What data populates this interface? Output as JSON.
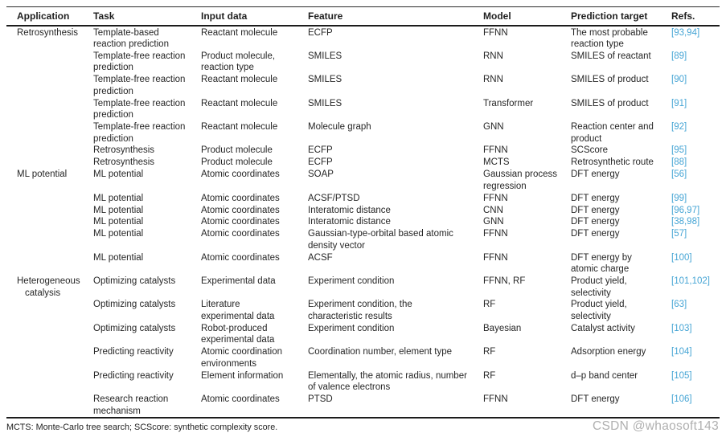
{
  "table": {
    "columns": [
      "Application",
      "Task",
      "Input data",
      "Feature",
      "Model",
      "Prediction target",
      "Refs."
    ],
    "rows": [
      {
        "application": "Retrosynthesis",
        "task": "Template-based\nreaction prediction",
        "input_data": "Reactant molecule",
        "feature": "ECFP",
        "model": "FFNN",
        "prediction_target": "The most probable\nreaction type",
        "refs": "[93,94]"
      },
      {
        "application": "",
        "task": "Template-free reaction\nprediction",
        "input_data": "Product molecule,\nreaction type",
        "feature": "SMILES",
        "model": "RNN",
        "prediction_target": "SMILES of reactant",
        "refs": "[89]"
      },
      {
        "application": "",
        "task": "Template-free reaction\nprediction",
        "input_data": "Reactant molecule",
        "feature": "SMILES",
        "model": "RNN",
        "prediction_target": "SMILES of product",
        "refs": "[90]"
      },
      {
        "application": "",
        "task": "Template-free reaction\nprediction",
        "input_data": "Reactant molecule",
        "feature": "SMILES",
        "model": "Transformer",
        "prediction_target": "SMILES of product",
        "refs": "[91]"
      },
      {
        "application": "",
        "task": "Template-free reaction\nprediction",
        "input_data": "Reactant molecule",
        "feature": "Molecule graph",
        "model": "GNN",
        "prediction_target": "Reaction center and\nproduct",
        "refs": "[92]"
      },
      {
        "application": "",
        "task": "Retrosynthesis",
        "input_data": "Product molecule",
        "feature": "ECFP",
        "model": "FFNN",
        "prediction_target": "SCScore",
        "refs": "[95]"
      },
      {
        "application": "",
        "task": "Retrosynthesis",
        "input_data": "Product molecule",
        "feature": "ECFP",
        "model": "MCTS",
        "prediction_target": "Retrosynthetic route",
        "refs": "[88]"
      },
      {
        "application": "ML potential",
        "task": "ML potential",
        "input_data": "Atomic coordinates",
        "feature": "SOAP",
        "model": "Gaussian process\nregression",
        "prediction_target": "DFT energy",
        "refs": "[56]"
      },
      {
        "application": "",
        "task": "ML potential",
        "input_data": "Atomic coordinates",
        "feature": "ACSF/PTSD",
        "model": "FFNN",
        "prediction_target": "DFT energy",
        "refs": "[99]"
      },
      {
        "application": "",
        "task": "ML potential",
        "input_data": "Atomic coordinates",
        "feature": "Interatomic distance",
        "model": "CNN",
        "prediction_target": "DFT energy",
        "refs": "[96,97]"
      },
      {
        "application": "",
        "task": "ML potential",
        "input_data": "Atomic coordinates",
        "feature": "Interatomic distance",
        "model": "GNN",
        "prediction_target": "DFT energy",
        "refs": "[38,98]"
      },
      {
        "application": "",
        "task": "ML potential",
        "input_data": "Atomic coordinates",
        "feature": "Gaussian-type-orbital based atomic\ndensity vector",
        "model": "FFNN",
        "prediction_target": "DFT energy",
        "refs": "[57]"
      },
      {
        "application": "",
        "task": "ML potential",
        "input_data": "Atomic coordinates",
        "feature": "ACSF",
        "model": "FFNN",
        "prediction_target": "DFT energy by\natomic charge",
        "refs": "[100]"
      },
      {
        "application": "Heterogeneous\ncatalysis",
        "task": "Optimizing catalysts",
        "input_data": "Experimental data",
        "feature": "Experiment condition",
        "model": "FFNN, RF",
        "prediction_target": "Product yield,\nselectivity",
        "refs": "[101,102]"
      },
      {
        "application": "",
        "task": "Optimizing catalysts",
        "input_data": "Literature\nexperimental data",
        "feature": "Experiment condition, the\ncharacteristic results",
        "model": "RF",
        "prediction_target": "Product yield,\nselectivity",
        "refs": "[63]"
      },
      {
        "application": "",
        "task": "Optimizing catalysts",
        "input_data": "Robot-produced\nexperimental data",
        "feature": "Experiment condition",
        "model": "Bayesian",
        "prediction_target": "Catalyst activity",
        "refs": "[103]"
      },
      {
        "application": "",
        "task": "Predicting reactivity",
        "input_data": "Atomic coordination\nenvironments",
        "feature": "Coordination number, element type",
        "model": "RF",
        "prediction_target": "Adsorption energy",
        "refs": "[104]"
      },
      {
        "application": "",
        "task": "Predicting reactivity",
        "input_data": "Element information",
        "feature": "Elementally, the atomic radius, number\nof valence electrons",
        "model": "RF",
        "prediction_target": "d–p band center",
        "refs": "[105]"
      },
      {
        "application": "",
        "task": "Research reaction\nmechanism",
        "input_data": "Atomic coordinates",
        "feature": "PTSD",
        "model": "FFNN",
        "prediction_target": "DFT energy",
        "refs": "[106]"
      }
    ],
    "footnote": "MCTS: Monte-Carlo tree search; SCScore: synthetic complexity score."
  },
  "watermark": "CSDN @whaosoft143",
  "colors": {
    "ref_link": "#46a5d5",
    "text": "#262626",
    "rule": "#1c1c1c",
    "watermark": "#b0b0b0"
  }
}
